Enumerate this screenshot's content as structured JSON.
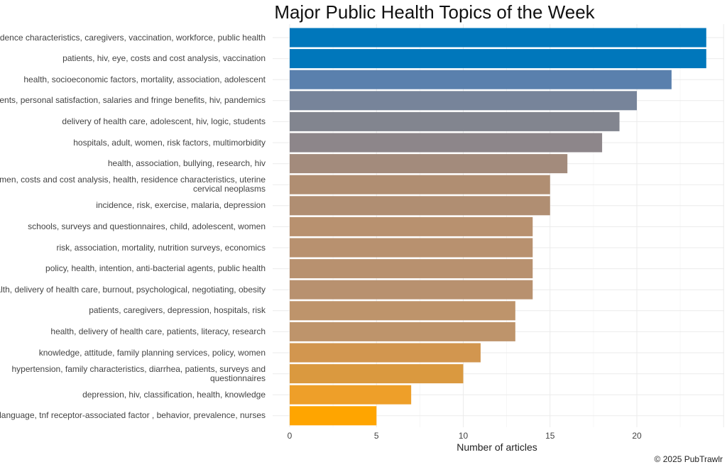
{
  "chart_data": {
    "type": "bar",
    "orientation": "horizontal",
    "title": "Major Public Health Topics of the Week",
    "xlabel": "Number of articles",
    "ylabel": "",
    "xlim": [
      0,
      25
    ],
    "xticks": [
      0,
      5,
      10,
      15,
      20
    ],
    "grid": true,
    "categories": [
      "residence characteristics, caregivers, vaccination, workforce, public health",
      "patients, hiv, eye, costs and cost analysis, vaccination",
      "health, socioeconomic factors, mortality, association, adolescent",
      "patients, personal satisfaction, salaries and fringe benefits, hiv, pandemics",
      "delivery of health care, adolescent, hiv, logic, students",
      "hospitals, adult, women, risk factors, multimorbidity",
      "health, association, bullying, research, hiv",
      "women, costs and cost analysis, health, residence characteristics, uterine cervical neoplasms",
      "incidence, risk, exercise, malaria, depression",
      "schools, surveys and questionnaires, child, adolescent, women",
      "risk, association, mortality, nutrition surveys, economics",
      "policy, health, intention, anti-bacterial agents, public health",
      "health, delivery of health care, burnout, psychological, negotiating, obesity",
      "patients, caregivers, depression, hospitals, risk",
      "health, delivery of health care, patients, literacy, research",
      "knowledge, attitude, family planning services, policy, women",
      "hypertension, family characteristics, diarrhea, patients, surveys and questionnaires",
      "depression, hiv, classification, health, knowledge",
      "language, tnf receptor-associated factor , behavior, prevalence, nurses"
    ],
    "values": [
      24,
      24,
      22,
      20,
      19,
      18,
      16,
      15,
      15,
      14,
      14,
      14,
      14,
      13,
      13,
      11,
      10,
      7,
      5
    ],
    "colors": [
      "#0077BB",
      "#0077BB",
      "#5A80AD",
      "#77849A",
      "#82858F",
      "#8D868A",
      "#A38B7C",
      "#B08E72",
      "#B08E72",
      "#B8916F",
      "#B8916F",
      "#B8916F",
      "#B8916F",
      "#BE946B",
      "#BE946B",
      "#D2964F",
      "#DA993F",
      "#EE9F29",
      "#FFA500"
    ]
  },
  "footer": {
    "copyright": "© 2025 PubTrawlr"
  }
}
